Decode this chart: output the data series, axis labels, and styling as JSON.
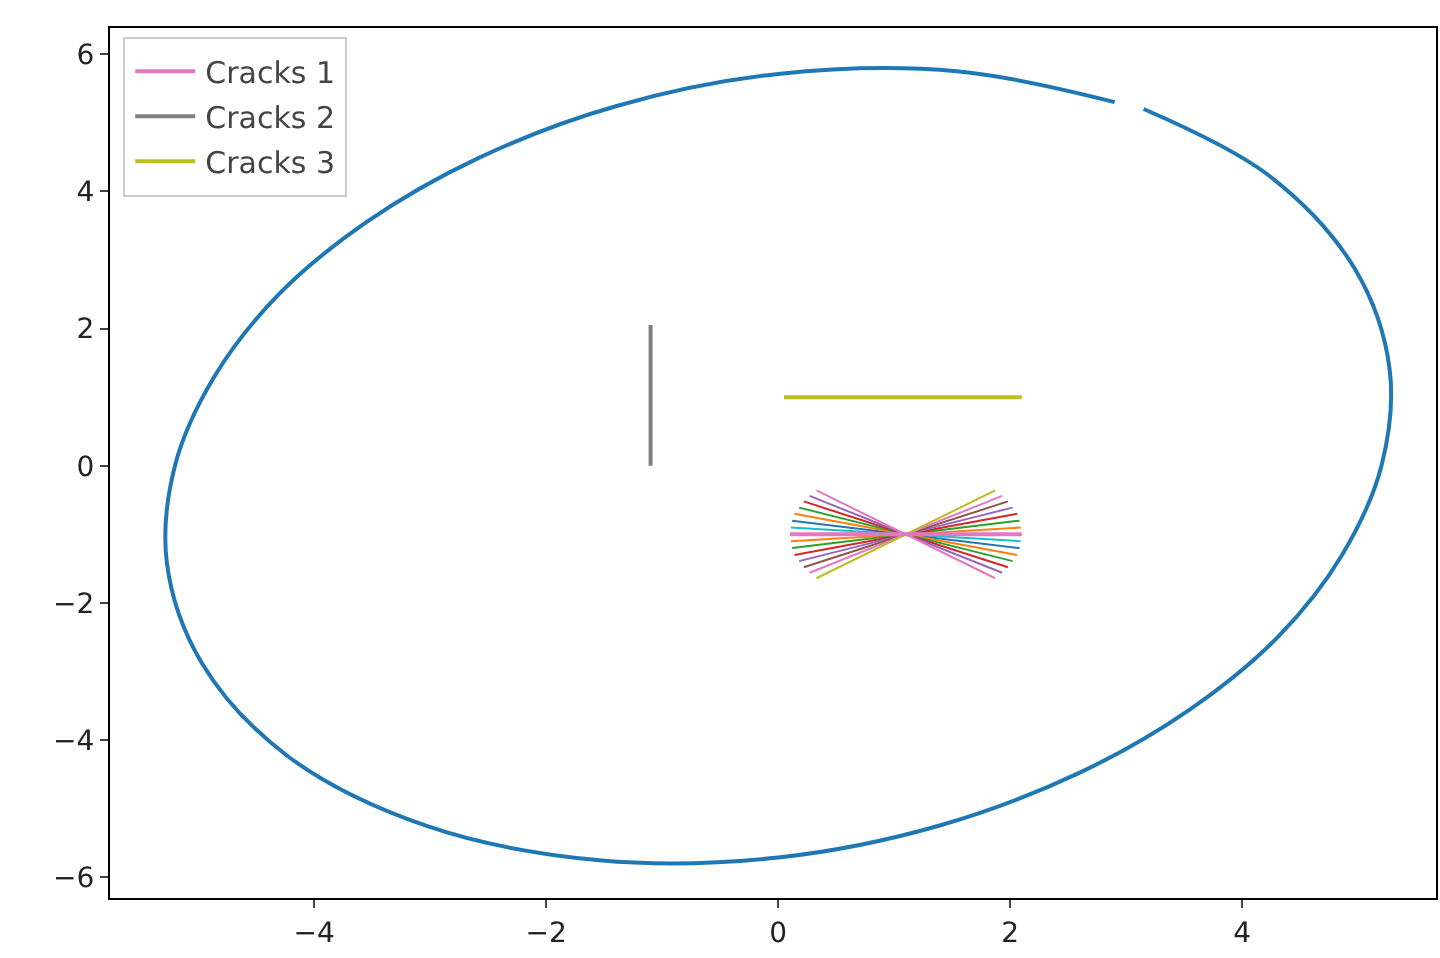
{
  "chart_data": {
    "type": "line",
    "xlim": [
      -5.76,
      5.67
    ],
    "ylim": [
      -6.3,
      6.38
    ],
    "xticks": [
      -4,
      -2,
      0,
      2,
      4
    ],
    "yticks": [
      -6,
      -4,
      -2,
      0,
      2,
      4,
      6
    ],
    "grid": false,
    "legend": "top left",
    "series": [
      {
        "color": "#1f77b4",
        "x": [
          2.9,
          1.54,
          0,
          -1.4,
          -2.59,
          -3.55,
          -4.31,
          -4.86,
          -5.2,
          -5.27,
          -4.97,
          -4.23,
          -3.03,
          -1.54,
          0,
          1.4,
          2.59,
          3.55,
          4.31,
          4.86,
          5.2,
          5.27,
          4.97,
          4.23,
          3.15
        ],
        "values": [
          5.3,
          5.75,
          5.71,
          5.24,
          4.48,
          3.55,
          2.49,
          1.3,
          0,
          -1.41,
          -2.87,
          -4.23,
          -5.25,
          -5.75,
          -5.71,
          -5.24,
          -4.48,
          -3.55,
          -2.49,
          -1.3,
          0,
          1.41,
          2.87,
          4.23,
          5.2
        ]
      },
      {
        "name": "Cracks 1",
        "color": "#e377c2",
        "x": [
          0.1,
          2.1
        ],
        "values": [
          -1,
          -1
        ]
      },
      {
        "color": "#ff7f0e",
        "x": [
          0.11,
          2.09
        ],
        "values": [
          -1.1,
          -0.9
        ]
      },
      {
        "color": "#2ca02c",
        "x": [
          0.12,
          2.08
        ],
        "values": [
          -1.2,
          -0.8
        ]
      },
      {
        "color": "#d62728",
        "x": [
          0.14,
          2.06
        ],
        "values": [
          -1.3,
          -0.7
        ]
      },
      {
        "color": "#9467bd",
        "x": [
          0.18,
          2.02
        ],
        "values": [
          -1.39,
          -0.61
        ]
      },
      {
        "color": "#8c564b",
        "x": [
          0.22,
          1.98
        ],
        "values": [
          -1.48,
          -0.52
        ]
      },
      {
        "color": "#e377c2",
        "x": [
          0.27,
          1.93
        ],
        "values": [
          -1.56,
          -0.44
        ]
      },
      {
        "color": "#bcbd22",
        "x": [
          0.33,
          1.87
        ],
        "values": [
          -1.64,
          -0.36
        ]
      },
      {
        "color": "#17becf",
        "x": [
          0.11,
          2.09
        ],
        "values": [
          -0.9,
          -1.1
        ]
      },
      {
        "color": "#1f77b4",
        "x": [
          0.12,
          2.08
        ],
        "values": [
          -0.8,
          -1.2
        ]
      },
      {
        "color": "#ff7f0e",
        "x": [
          0.14,
          2.06
        ],
        "values": [
          -0.7,
          -1.3
        ]
      },
      {
        "color": "#2ca02c",
        "x": [
          0.18,
          2.02
        ],
        "values": [
          -0.61,
          -1.39
        ]
      },
      {
        "color": "#d62728",
        "x": [
          0.22,
          1.98
        ],
        "values": [
          -0.52,
          -1.48
        ]
      },
      {
        "color": "#9467bd",
        "x": [
          0.27,
          1.93
        ],
        "values": [
          -0.44,
          -1.56
        ]
      },
      {
        "color": "#e377c2",
        "x": [
          0.33,
          1.87
        ],
        "values": [
          -0.36,
          -1.64
        ]
      },
      {
        "name": "Cracks 2",
        "color": "#7f7f7f",
        "x": [
          -1.1,
          -1.1
        ],
        "values": [
          0,
          2.05
        ]
      },
      {
        "name": "Cracks 3",
        "color": "#bcbd22",
        "x": [
          0.05,
          2.1
        ],
        "values": [
          1,
          1
        ]
      }
    ]
  }
}
